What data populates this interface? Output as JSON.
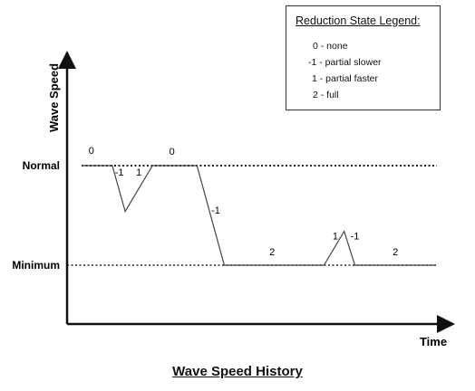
{
  "chart_data": {
    "type": "line",
    "title": "Wave Speed History",
    "xlabel": "Time",
    "ylabel": "Wave Speed",
    "y_reference_levels": [
      {
        "label": "Normal",
        "value": 1
      },
      {
        "label": "Minimum",
        "value": 0
      }
    ],
    "ylim": [
      -0.6,
      2.05
    ],
    "xlim": [
      0,
      100
    ],
    "grid": false,
    "legend_position": "top-right",
    "series": [
      {
        "points": [
          {
            "x": 0,
            "y": 1
          },
          {
            "x": 12.3,
            "y": 1
          },
          {
            "x": 15.8,
            "y": 0.54
          },
          {
            "x": 23.2,
            "y": 1
          },
          {
            "x": 35.3,
            "y": 1
          },
          {
            "x": 42.7,
            "y": 0
          },
          {
            "x": 69.8,
            "y": 0
          },
          {
            "x": 75.3,
            "y": 0.34
          },
          {
            "x": 78.2,
            "y": 0
          },
          {
            "x": 100,
            "y": 0
          }
        ]
      }
    ],
    "annotations": [
      {
        "text": "0",
        "x": 6.6,
        "y": 1.12
      },
      {
        "text": "-1",
        "x": 14.2,
        "y": 0.9
      },
      {
        "text": "1",
        "x": 19.5,
        "y": 0.9
      },
      {
        "text": "0",
        "x": 28.5,
        "y": 1.11
      },
      {
        "text": "-1",
        "x": 40.4,
        "y": 0.52
      },
      {
        "text": "2",
        "x": 55.7,
        "y": 0.1
      },
      {
        "text": "1",
        "x": 72.9,
        "y": 0.26
      },
      {
        "text": "-1",
        "x": 78.2,
        "y": 0.26
      },
      {
        "text": "2",
        "x": 89.2,
        "y": 0.1
      }
    ],
    "legend": {
      "title": "Reduction State Legend:",
      "entries": [
        "0 - none",
        "-1 - partial slower",
        "1 - partial faster",
        "2 - full"
      ]
    },
    "colors": {
      "line": "#444444",
      "axis": "#111111",
      "reference": "#222222"
    }
  }
}
